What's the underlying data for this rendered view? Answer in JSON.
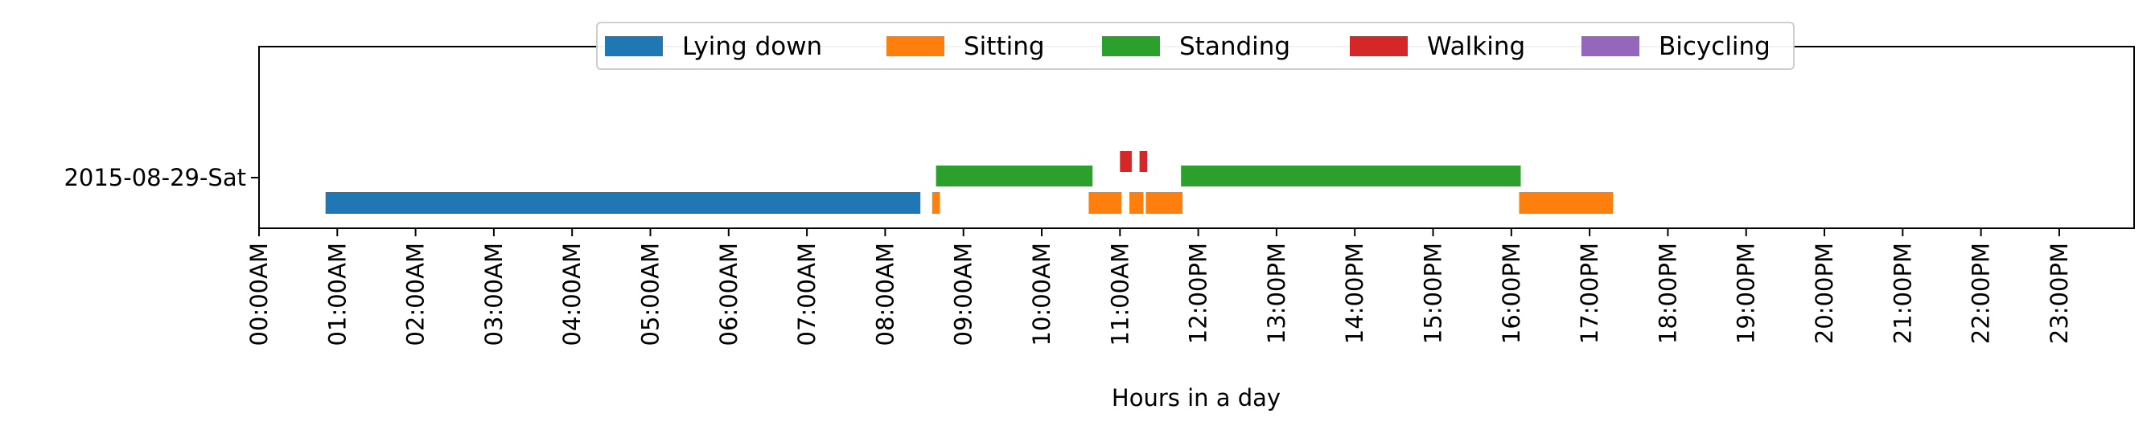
{
  "chart_data": {
    "type": "timeline",
    "xlabel": "Hours in a day",
    "ylabel": "",
    "xlim": [
      0,
      24
    ],
    "x_tick_values": [
      0,
      1,
      2,
      3,
      4,
      5,
      6,
      7,
      8,
      9,
      10,
      11,
      12,
      13,
      14,
      15,
      16,
      17,
      18,
      19,
      20,
      21,
      22,
      23
    ],
    "x_tick_labels": [
      "00:00AM",
      "01:00AM",
      "02:00AM",
      "03:00AM",
      "04:00AM",
      "05:00AM",
      "06:00AM",
      "07:00AM",
      "08:00AM",
      "09:00AM",
      "10:00AM",
      "11:00AM",
      "12:00PM",
      "13:00PM",
      "14:00PM",
      "15:00PM",
      "16:00PM",
      "17:00PM",
      "18:00PM",
      "19:00PM",
      "20:00PM",
      "21:00PM",
      "22:00PM",
      "23:00PM"
    ],
    "y_categories": [
      "2015-08-29-Sat"
    ],
    "legend_position": "top-center",
    "grid": false,
    "series": [
      {
        "name": "Lying down",
        "color": "#1f77b4",
        "lane": 0,
        "intervals": [
          [
            0.85,
            8.45
          ]
        ]
      },
      {
        "name": "Sitting",
        "color": "#ff7f0e",
        "lane": 0,
        "intervals": [
          [
            8.6,
            8.7
          ],
          [
            10.6,
            11.02
          ],
          [
            11.12,
            11.3
          ],
          [
            11.33,
            11.8
          ],
          [
            16.1,
            17.3
          ]
        ]
      },
      {
        "name": "Standing",
        "color": "#2ca02c",
        "lane": 1,
        "intervals": [
          [
            8.65,
            10.65
          ],
          [
            11.78,
            16.12
          ]
        ]
      },
      {
        "name": "Walking",
        "color": "#d62728",
        "lane": 2,
        "intervals": [
          [
            11.0,
            11.15
          ],
          [
            11.25,
            11.35
          ]
        ]
      },
      {
        "name": "Bicycling",
        "color": "#9467bd",
        "lane": 3,
        "intervals": []
      }
    ]
  }
}
